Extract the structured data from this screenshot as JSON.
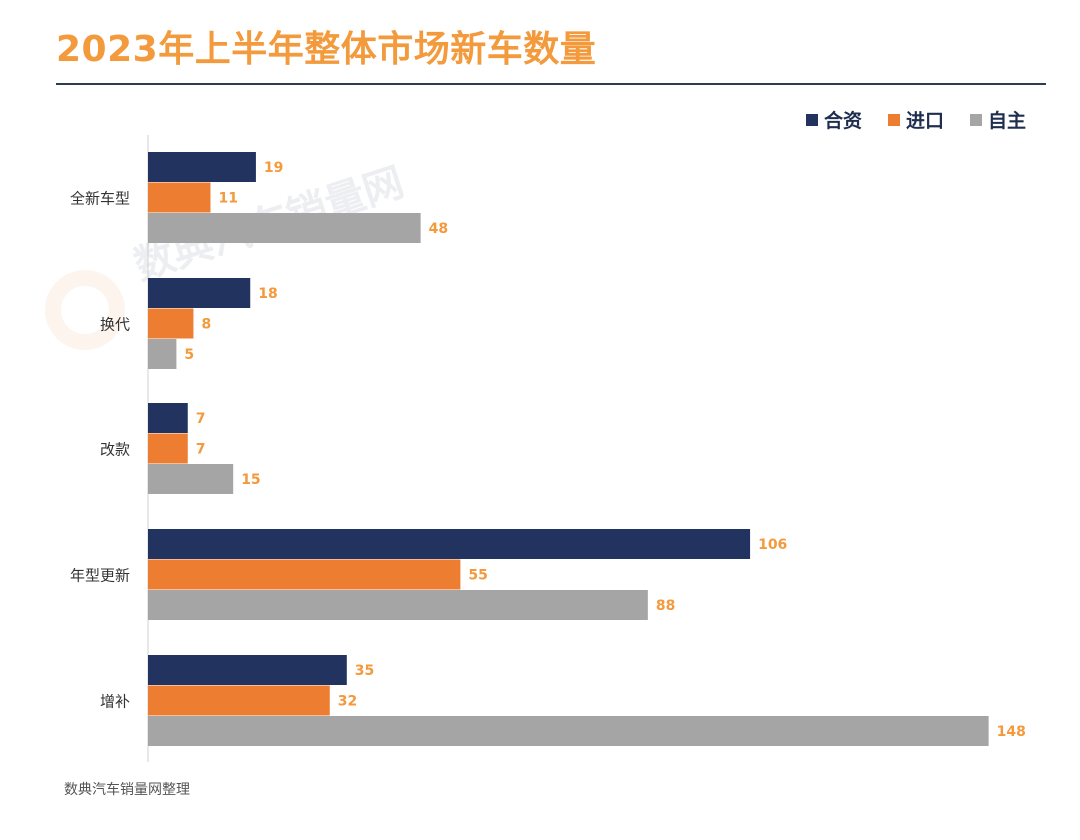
{
  "header": {
    "title": "2023年上半年整体市场新车数量"
  },
  "legend": {
    "items": [
      {
        "label": "合资",
        "color": "#21335E"
      },
      {
        "label": "进口",
        "color": "#ED7D31"
      },
      {
        "label": "自主",
        "color": "#A5A5A5"
      }
    ]
  },
  "footer": {
    "source": "数典汽车销量网整理"
  },
  "watermark": {
    "text": "数典汽车销量网"
  },
  "chart_data": {
    "type": "bar",
    "orientation": "horizontal",
    "title": "2023年上半年整体市场新车数量",
    "categories": [
      "全新车型",
      "换代",
      "改款",
      "年型更新",
      "增补"
    ],
    "series": [
      {
        "name": "合资",
        "color": "#21335E",
        "values": [
          19,
          18,
          7,
          106,
          35
        ]
      },
      {
        "name": "进口",
        "color": "#ED7D31",
        "values": [
          11,
          8,
          7,
          55,
          32
        ]
      },
      {
        "name": "自主",
        "color": "#A5A5A5",
        "values": [
          48,
          5,
          15,
          88,
          148
        ]
      }
    ],
    "xlim": [
      0,
      150
    ],
    "grid": false,
    "legend_position": "top-right",
    "data_labels": true,
    "label_color": "#F39A3C"
  }
}
